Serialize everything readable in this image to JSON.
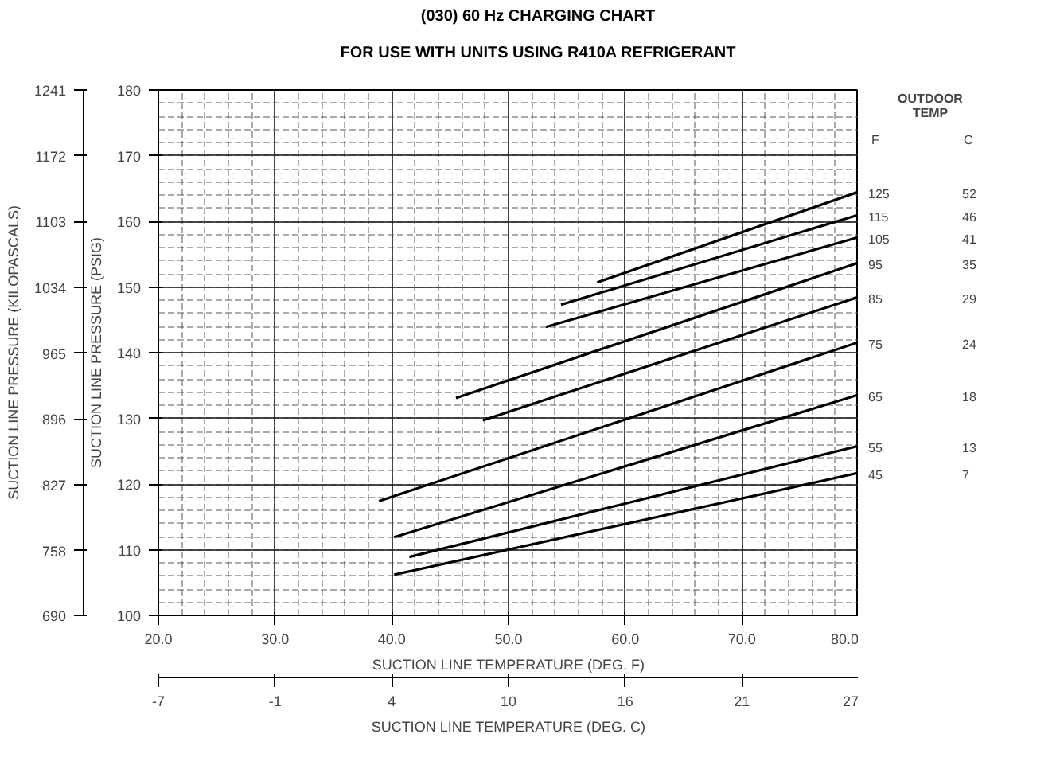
{
  "chart_data": {
    "type": "line",
    "title": "(030) 60 Hz CHARGING CHART",
    "subtitle": "FOR USE WITH UNITS USING R410A REFRIGERANT",
    "xlabel": "SUCTION LINE TEMPERATURE (DEG. F)",
    "ylabel": "SUCTION LINE PRESSURE (PSIG)",
    "y2label": "SUCTION LINE PRESSURE (KILOPASCALS)",
    "x2label": "SUCTION LINE TEMPERATURE (DEG. C)",
    "legend_title": "OUTDOOR TEMP",
    "xlim": [
      20,
      80
    ],
    "ylim": [
      100,
      180
    ],
    "xticks": [
      {
        "value": 20,
        "label": "20.0"
      },
      {
        "value": 30,
        "label": "30.0"
      },
      {
        "value": 40,
        "label": "40.0"
      },
      {
        "value": 50,
        "label": "50.0"
      },
      {
        "value": 60,
        "label": "60.0"
      },
      {
        "value": 70,
        "label": "70.0"
      },
      {
        "value": 80,
        "label": "80.0"
      }
    ],
    "yticks": [
      100,
      110,
      120,
      130,
      140,
      150,
      160,
      170,
      180
    ],
    "y2lim": [
      690,
      1241
    ],
    "y2ticks": [
      690,
      758,
      827,
      896,
      965,
      1034,
      1103,
      1172,
      1241
    ],
    "x2lim": [
      -6.67,
      26.67
    ],
    "x2ticks": [
      {
        "value": -6.67,
        "label": "-7"
      },
      {
        "value": -1.11,
        "label": "-1"
      },
      {
        "value": 4.44,
        "label": "4"
      },
      {
        "value": 10,
        "label": "10"
      },
      {
        "value": 15.56,
        "label": "16"
      },
      {
        "value": 21.11,
        "label": "21"
      },
      {
        "value": 26.67,
        "label": "27"
      }
    ],
    "grid": true,
    "line_style": "solid",
    "series": [
      {
        "name": "125",
        "color": "#000000",
        "x": [
          57.6,
          80
        ],
        "values": [
          150.7,
          164.5
        ]
      },
      {
        "name": "115",
        "color": "#000000",
        "x": [
          54.5,
          80
        ],
        "values": [
          147.3,
          161.0
        ]
      },
      {
        "name": "105",
        "color": "#000000",
        "x": [
          53.2,
          80
        ],
        "values": [
          143.9,
          157.6
        ]
      },
      {
        "name": "95",
        "color": "#000000",
        "x": [
          45.5,
          80
        ],
        "values": [
          133.1,
          153.7
        ]
      },
      {
        "name": "85",
        "color": "#000000",
        "x": [
          47.8,
          80
        ],
        "values": [
          129.7,
          148.5
        ]
      },
      {
        "name": "75",
        "color": "#000000",
        "x": [
          38.9,
          80
        ],
        "values": [
          117.4,
          141.6
        ]
      },
      {
        "name": "65",
        "color": "#000000",
        "x": [
          40.2,
          80
        ],
        "values": [
          111.9,
          133.6
        ]
      },
      {
        "name": "55",
        "color": "#000000",
        "x": [
          41.5,
          80
        ],
        "values": [
          108.9,
          125.8
        ]
      },
      {
        "name": "45",
        "color": "#000000",
        "x": [
          40.2,
          80
        ],
        "values": [
          106.2,
          121.7
        ]
      }
    ],
    "annotations": [
      "F",
      "C",
      "52",
      "46",
      "41",
      "35",
      "29",
      "24",
      "18",
      "13",
      "7"
    ]
  }
}
